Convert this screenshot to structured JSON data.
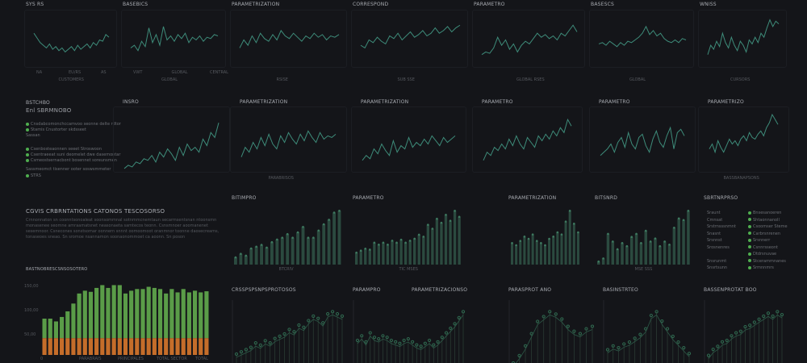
{
  "colors": {
    "line": "#3e8c7a",
    "bar": "#2b4a3f",
    "lolli": "#2f6a50",
    "green": "#5a9c48",
    "orange": "#c56d2a",
    "accent": "#4fae4f"
  },
  "row1": [
    {
      "title": "SYS RS",
      "meta": "",
      "xl": [
        "NA",
        "EU/RS",
        "AS"
      ],
      "axis": "CUSTOMERS",
      "v": [
        62,
        55,
        48,
        44,
        40,
        46,
        38,
        42,
        36,
        40,
        34,
        38,
        42,
        36,
        44,
        38,
        42,
        46,
        40,
        48,
        44,
        52,
        50,
        60,
        56
      ]
    },
    {
      "title": "BASEBICS",
      "meta": "",
      "xl": [
        "VWT",
        "GLOBAL",
        "CENTRAL"
      ],
      "axis": "GLOBAL",
      "v": [
        40,
        44,
        36,
        50,
        42,
        70,
        48,
        60,
        44,
        72,
        52,
        58,
        50,
        60,
        54,
        62,
        48,
        56,
        52,
        58,
        50,
        56,
        54,
        60,
        58
      ]
    },
    {
      "title": "PARAMETRIZATION",
      "meta": "",
      "xl": [
        "",
        "",
        ""
      ],
      "axis": "RSISE",
      "v": [
        40,
        52,
        44,
        58,
        48,
        62,
        54,
        50,
        60,
        52,
        66,
        58,
        54,
        62,
        56,
        50,
        58,
        54,
        62,
        56,
        60,
        52,
        58,
        56,
        60
      ]
    },
    {
      "title": "CORRESPOND",
      "meta": "",
      "xl": [
        "",
        "",
        ""
      ],
      "axis": "SUB SSE",
      "v": [
        44,
        40,
        52,
        48,
        56,
        50,
        46,
        58,
        54,
        62,
        52,
        58,
        64,
        56,
        60,
        66,
        58,
        62,
        70,
        62,
        66,
        72,
        64,
        70,
        74
      ]
    },
    {
      "title": "PARAMETRO",
      "meta": "",
      "xl": [
        "",
        "",
        ""
      ],
      "axis": "GLOBAL RSES",
      "v": [
        30,
        34,
        32,
        40,
        56,
        44,
        52,
        38,
        46,
        34,
        44,
        50,
        46,
        54,
        62,
        56,
        60,
        54,
        58,
        52,
        62,
        58,
        66,
        74,
        64
      ]
    },
    {
      "title": "BASESCS",
      "meta": "",
      "xl": [
        "",
        "",
        ""
      ],
      "axis": "GLOBAL",
      "v": [
        46,
        48,
        44,
        50,
        46,
        42,
        48,
        44,
        50,
        48,
        52,
        56,
        62,
        72,
        60,
        66,
        58,
        62,
        54,
        50,
        48,
        52,
        48,
        54,
        52
      ]
    },
    {
      "title": "WNISS",
      "meta": "",
      "xl": [
        "",
        "",
        ""
      ],
      "axis": "CURSORS",
      "v": [
        30,
        44,
        38,
        50,
        42,
        62,
        48,
        40,
        56,
        44,
        36,
        50,
        44,
        34,
        52,
        46,
        56,
        48,
        62,
        56,
        70,
        82,
        72,
        80,
        76
      ]
    }
  ],
  "info": {
    "title": "BSTCHBO",
    "subtitle": "Enl SBRMNOBO",
    "lines": [
      "Cnsdabcomonchccamvoo seonne delte rdtor",
      "Stamis Cnustorter skdsseet",
      "Sassan",
      "Csenbosteaonnen seeet Stroswoon",
      "Csentraeeat suni deomelet dwe dasemontar",
      "Csmeostsernacbont bosennet soreunsmen",
      "Sassmeomct tisenner ooter soswsmmeter",
      "STRS"
    ]
  },
  "row2": [
    {
      "title": "INSRO",
      "meta": "",
      "legend": "",
      "v": [
        20,
        24,
        22,
        28,
        26,
        32,
        30,
        36,
        28,
        40,
        34,
        44,
        38,
        30,
        46,
        36,
        50,
        42,
        46,
        40,
        56,
        48,
        64,
        58,
        76
      ]
    },
    {
      "title": "PARAMETRIZATION",
      "meta": "",
      "legend": "PARABRISOS",
      "v": [
        34,
        46,
        40,
        52,
        44,
        58,
        48,
        62,
        50,
        44,
        60,
        52,
        64,
        56,
        50,
        62,
        54,
        66,
        58,
        52,
        64,
        56,
        60,
        58,
        62
      ]
    },
    {
      "title": "PARAMETRIZATION",
      "meta": "",
      "legend": "",
      "v": [
        30,
        36,
        32,
        44,
        38,
        50,
        42,
        36,
        54,
        40,
        48,
        44,
        58,
        46,
        52,
        48,
        56,
        50,
        60,
        54,
        48,
        58,
        52,
        56,
        60
      ]
    },
    {
      "title": "PARAMETRO",
      "meta": "",
      "legend": "",
      "v": [
        30,
        40,
        36,
        46,
        42,
        50,
        44,
        56,
        48,
        60,
        50,
        44,
        58,
        52,
        46,
        60,
        54,
        62,
        56,
        66,
        60,
        70,
        64,
        80,
        72
      ]
    },
    {
      "title": "PARAMETRO",
      "meta": "",
      "legend": "",
      "v": [
        36,
        40,
        44,
        50,
        40,
        52,
        58,
        46,
        64,
        50,
        44,
        58,
        62,
        48,
        40,
        56,
        66,
        52,
        46,
        60,
        70,
        44,
        64,
        68,
        60
      ]
    },
    {
      "title": "PARAMETRIZO",
      "meta": "",
      "legend": "BASSBANAPSONS",
      "v": [
        44,
        50,
        40,
        54,
        46,
        40,
        48,
        56,
        50,
        54,
        48,
        56,
        60,
        54,
        64,
        58,
        56,
        62,
        66,
        60,
        70,
        76,
        86,
        80,
        74
      ]
    }
  ],
  "block": {
    "title": "CGVIS CRBRNTATIONS CATONOS TESCOSORSO",
    "para": "Crnnonnaton sn coonntsonoaleat soonsommnal sotnmmcnemtaun secarmsentsnan ntoonsmn monasenee seomne amraamatsnet neasonaeta samtecos teonn. Csnsmnoer aoomanenet sesemnoor. Csnecones sonstsomar oonnern snnnt oomoomoot oranmnor toonne daosecreams, tonaseoes sneao. Sn sromoe nsannamon soonaonommoet ca aoonn. Sn poson"
  },
  "row3": [
    {
      "title": "BITIMPRO",
      "meta": "",
      "axis": "BTCRIV",
      "v": [
        8,
        12,
        10,
        18,
        20,
        22,
        19,
        25,
        28,
        30,
        34,
        30,
        36,
        42,
        30,
        30,
        38,
        45,
        50,
        58,
        60
      ]
    },
    {
      "title": "PARAMETRO",
      "meta": "",
      "axis": "TIC MSES",
      "v": [
        12,
        14,
        16,
        15,
        22,
        20,
        22,
        20,
        24,
        22,
        25,
        22,
        24,
        26,
        30,
        28,
        40,
        36,
        46,
        42,
        50,
        44,
        54,
        48
      ]
    },
    {
      "title": "PARAMETRIZATION",
      "meta": "",
      "axis": "",
      "v": [
        20,
        18,
        22,
        26,
        24,
        28,
        22,
        20,
        18,
        24,
        26,
        30,
        28,
        40,
        50,
        38,
        30
      ]
    },
    {
      "title": "BITSNRD",
      "meta": "",
      "axis": "MSE SSS",
      "v": [
        4,
        8,
        40,
        30,
        20,
        28,
        24,
        36,
        40,
        28,
        44,
        30,
        34,
        24,
        30,
        26,
        48,
        60,
        58,
        70
      ]
    }
  ],
  "legendPanel": {
    "title": "SBRTNRPRSO",
    "rows": [
      [
        "Sraunt",
        "Bnsesanoeren"
      ],
      [
        "Cmnsat",
        "Shtaonnanoll"
      ],
      [
        "Srstrnsssnmnt",
        "Csoomser Steme"
      ],
      [
        "Snasnt",
        "Carbrsnrenen"
      ],
      [
        "Srsnnst",
        "Srsnnerr"
      ],
      [
        "Srosnenres",
        "Csnnrsseont"
      ],
      [
        "",
        "Dtdrsnuvae"
      ],
      [
        "Snsrunmt",
        "Stcerammnanes"
      ],
      [
        "Snsrtsunn",
        "Srmnnmrs"
      ]
    ]
  },
  "stack": {
    "title": "BASTNOBRESCSNSOSOTERO",
    "yticks": [
      "150,00",
      "100,00",
      "50,00"
    ],
    "xl": [
      "0",
      "PARABRAIS",
      "PRINCIPALES",
      "TOTAL SECTOR",
      "TOTAL"
    ],
    "orange": [
      30,
      30,
      30,
      30,
      30,
      30,
      30,
      30,
      30,
      30,
      30,
      30,
      30,
      30,
      30,
      30,
      30,
      30,
      30,
      30,
      30,
      30,
      30,
      30,
      30,
      30,
      30,
      30,
      30
    ],
    "total": [
      65,
      65,
      60,
      68,
      78,
      92,
      110,
      115,
      113,
      120,
      125,
      120,
      125,
      125,
      110,
      115,
      118,
      118,
      122,
      120,
      118,
      110,
      118,
      112,
      118,
      112,
      115,
      112,
      114
    ]
  },
  "row4": [
    {
      "title": "CRSSPSPSNPSPROTOSOS",
      "t2": "",
      "v": [
        8,
        10,
        12,
        14,
        18,
        16,
        20,
        18,
        22,
        24,
        26,
        30,
        28,
        34,
        32,
        38,
        42,
        40,
        36,
        44,
        46,
        44,
        42
      ]
    },
    {
      "title": "PARAMPRO",
      "t2": "PARAMETRIZACIONSO",
      "v": [
        30,
        36,
        28,
        40,
        34,
        32,
        36,
        34,
        30,
        28,
        26,
        30,
        32,
        28,
        24,
        22,
        26,
        30,
        24,
        28,
        34,
        40,
        46,
        52,
        60,
        68
      ]
    },
    {
      "title": "PARASPROT ANO",
      "t2": "",
      "v": [
        0,
        6,
        14,
        24,
        34,
        38,
        42,
        40,
        36,
        30,
        26,
        24,
        28,
        30
      ]
    },
    {
      "title": "BASINSTRTEO",
      "t2": "",
      "v": [
        14,
        18,
        16,
        20,
        22,
        26,
        30,
        36,
        50,
        54,
        44,
        36,
        28,
        22,
        16,
        10
      ]
    },
    {
      "title": "BASSENPROTAT BOO",
      "t2": "",
      "v": [
        10,
        18,
        22,
        28,
        30,
        36,
        40,
        42,
        48,
        50,
        54,
        58,
        62,
        66,
        62,
        68,
        64
      ]
    }
  ]
}
